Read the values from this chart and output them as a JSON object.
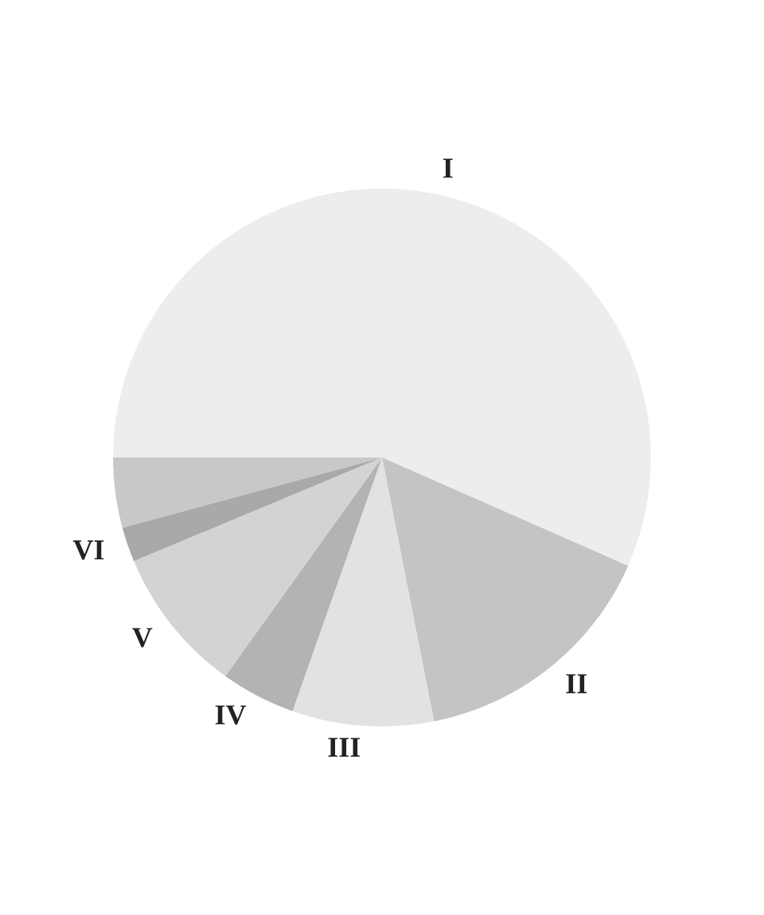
{
  "chart_data": {
    "type": "pie",
    "categories": [
      "I",
      "II",
      "III",
      "IV",
      "V",
      "VI",
      null
    ],
    "values": [
      56.6,
      15.3,
      8.5,
      4.5,
      8.8,
      2.1,
      4.2
    ],
    "colors": [
      "#ededed",
      "#c4c4c4",
      "#e2e2e2",
      "#b3b3b3",
      "#d3d3d3",
      "#a9a9a9",
      "#c8c8c8"
    ]
  }
}
